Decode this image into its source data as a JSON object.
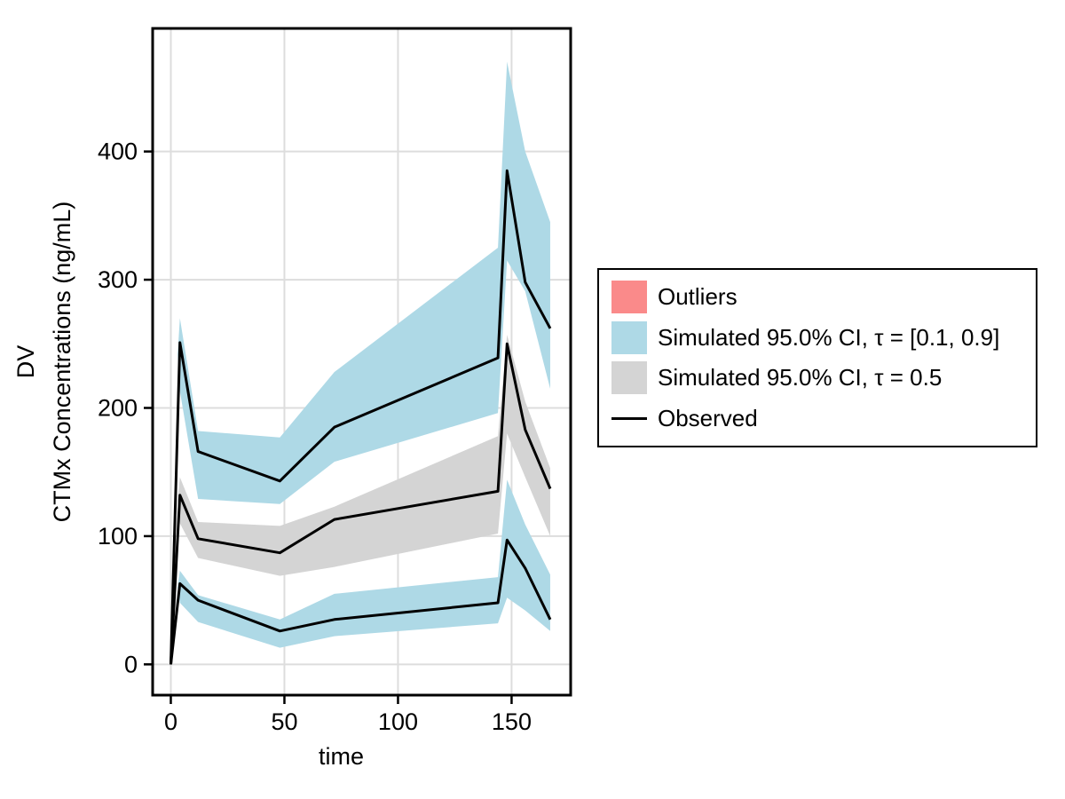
{
  "figure": {
    "background": "#ffffff",
    "legend": {
      "items": [
        {
          "label": "Outliers",
          "type": "swatch",
          "color": "#FA8A8A"
        },
        {
          "label": "Simulated 95.0% CI, τ = [0.1, 0.9]",
          "type": "swatch",
          "color": "#AED9E6"
        },
        {
          "label": "Simulated 95.0% CI, τ = 0.5",
          "type": "swatch",
          "color": "#D4D4D4"
        },
        {
          "label": "Observed",
          "type": "line",
          "color": "#000000"
        }
      ]
    }
  },
  "chart_data": {
    "type": "area",
    "description": "VPC plot: observed 10th/50th/90th percentile lines of CTMx concentrations vs time with simulated 95% CI ribbons; no outliers displayed",
    "title": "",
    "xlabel": "time",
    "ylabel_line1": "DV",
    "ylabel_line2": "CTMx Concentrations (ng/mL)",
    "x_ticks": [
      0,
      50,
      100,
      150
    ],
    "y_ticks": [
      0,
      100,
      200,
      300,
      400
    ],
    "x_range": [
      -8,
      176
    ],
    "y_range": [
      -24,
      496
    ],
    "grid": true,
    "legend_position": "right",
    "style": {
      "grid_color": "#DDDDDD",
      "frame_color": "#000000",
      "observed_color": "#000000",
      "ci_outer_color": "#AED9E6",
      "ci_median_color": "#D4D4D4",
      "outlier_color": "#FA8A8A"
    },
    "bands": [
      {
        "name": "simulated-ci-tau-0.9",
        "color": "#AED9E6",
        "t": [
          3,
          4,
          12,
          48,
          72,
          144,
          148,
          156,
          167
        ],
        "upper": [
          242,
          270,
          182,
          177,
          228,
          325,
          470,
          400,
          345
        ],
        "lower": [
          242,
          213,
          129,
          125,
          158,
          196,
          315,
          291,
          215
        ]
      },
      {
        "name": "simulated-ci-tau-0.5",
        "color": "#D4D4D4",
        "t": [
          3,
          4,
          12,
          48,
          72,
          144,
          148,
          156,
          167
        ],
        "upper": [
          128,
          146,
          111,
          108,
          123,
          178,
          257,
          205,
          153
        ],
        "lower": [
          128,
          110,
          83,
          69,
          76,
          102,
          180,
          146,
          100
        ]
      },
      {
        "name": "simulated-ci-tau-0.1",
        "color": "#AED9E6",
        "t": [
          3,
          4,
          12,
          48,
          72,
          144,
          148,
          156,
          167
        ],
        "upper": [
          60,
          73,
          54,
          35,
          55,
          68,
          144,
          109,
          70
        ],
        "lower": [
          60,
          48,
          33,
          13,
          22,
          32,
          52,
          42,
          26
        ]
      }
    ],
    "lines": [
      {
        "name": "observed-q90",
        "color": "#000000",
        "t": [
          0,
          4,
          12,
          48,
          72,
          144,
          148,
          156,
          167
        ],
        "v": [
          0,
          251,
          166,
          143,
          185,
          239,
          385,
          298,
          262
        ]
      },
      {
        "name": "observed-q50",
        "color": "#000000",
        "t": [
          0,
          4,
          12,
          48,
          72,
          144,
          148,
          156,
          167
        ],
        "v": [
          0,
          132,
          98,
          87,
          113,
          135,
          250,
          183,
          137
        ]
      },
      {
        "name": "observed-q10",
        "color": "#000000",
        "t": [
          0,
          4,
          12,
          48,
          72,
          144,
          148,
          156,
          167
        ],
        "v": [
          0,
          63,
          50,
          26,
          35,
          48,
          97,
          75,
          35
        ]
      }
    ],
    "outliers": []
  }
}
